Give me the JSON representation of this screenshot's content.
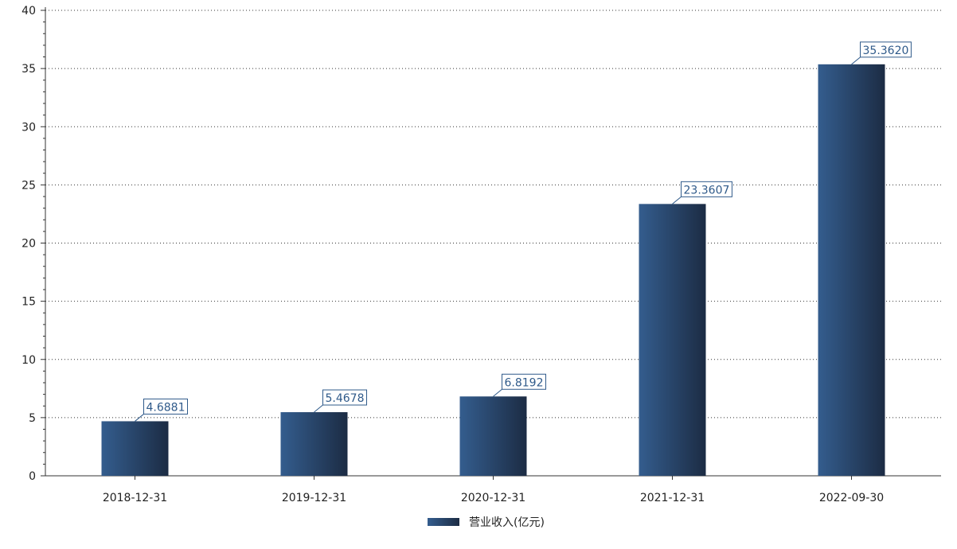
{
  "chart_data": {
    "type": "bar",
    "categories": [
      "2018-12-31",
      "2019-12-31",
      "2020-12-31",
      "2021-12-31",
      "2022-09-30"
    ],
    "series": [
      {
        "name": "营业收入(亿元)",
        "values": [
          4.6881,
          5.4678,
          6.8192,
          23.3607,
          35.362
        ],
        "labels": [
          "4.6881",
          "5.4678",
          "6.8192",
          "23.3607",
          "35.3620"
        ]
      }
    ],
    "ylim": [
      0,
      40
    ],
    "yticks": [
      0,
      5,
      10,
      15,
      20,
      25,
      30,
      35,
      40
    ],
    "grid": "horizontal-dotted",
    "legend_position": "bottom-center",
    "colors": {
      "bar_start": "#345d8e",
      "bar_end": "#1c2c44",
      "label": "#2f5a8a"
    }
  }
}
